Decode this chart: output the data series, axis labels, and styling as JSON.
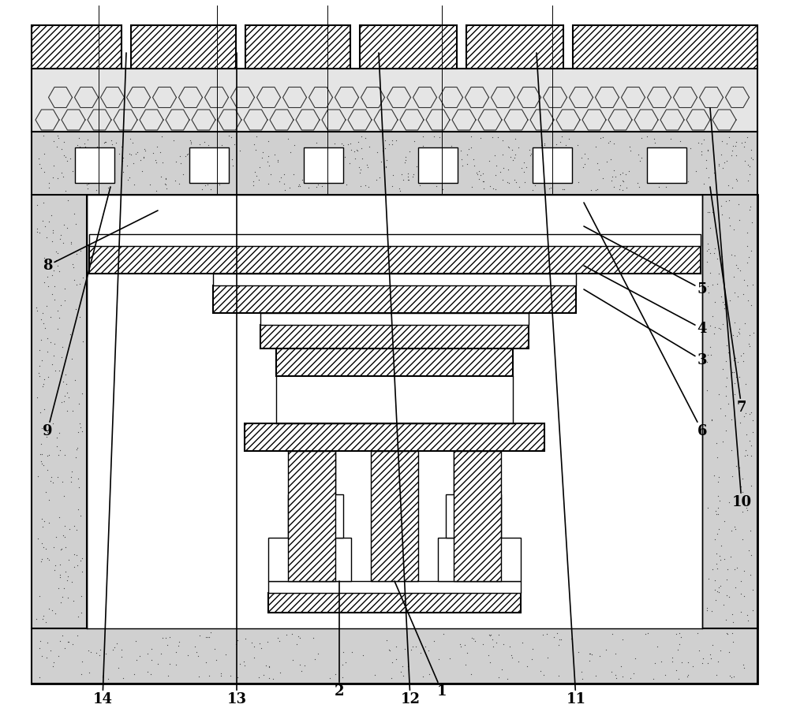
{
  "figure_width": 10.0,
  "figure_height": 9.17,
  "bg_color": "#ffffff",
  "lc": "#000000",
  "concrete_fc": "#d0d0d0",
  "white": "#ffffff",
  "annotations": [
    [
      "1",
      56,
      4,
      50,
      18
    ],
    [
      "2",
      43,
      4,
      43,
      18
    ],
    [
      "3",
      89,
      46,
      74,
      55
    ],
    [
      "4",
      89,
      50,
      74,
      58
    ],
    [
      "5",
      89,
      55,
      74,
      63
    ],
    [
      "6",
      89,
      37,
      74,
      66
    ],
    [
      "7",
      94,
      40,
      90,
      68
    ],
    [
      "8",
      6,
      58,
      20,
      65
    ],
    [
      "9",
      6,
      37,
      14,
      68
    ],
    [
      "10",
      94,
      28,
      90,
      78
    ],
    [
      "11",
      73,
      3,
      68,
      85
    ],
    [
      "12",
      52,
      3,
      48,
      85
    ],
    [
      "13",
      30,
      3,
      30,
      85
    ],
    [
      "14",
      13,
      3,
      16,
      85
    ]
  ]
}
